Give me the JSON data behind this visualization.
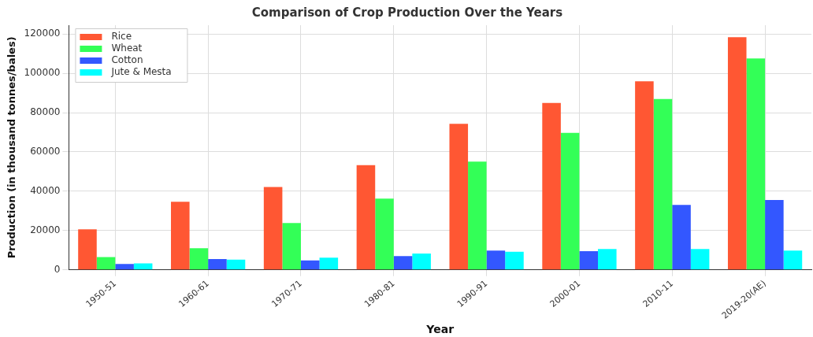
{
  "chart_data": {
    "type": "bar",
    "title": "Comparison of Crop Production Over the Years",
    "xlabel": "Year",
    "ylabel": "Production (in thousand tonnes/bales)",
    "categories": [
      "1950-51",
      "1960-61",
      "1970-71",
      "1980-81",
      "1990-91",
      "2000-01",
      "2010-11",
      "2019-20(AE)"
    ],
    "series": [
      {
        "name": "Rice",
        "color": "#ff5733",
        "values": [
          20600,
          34600,
          42200,
          53300,
          74300,
          84900,
          96000,
          118400
        ]
      },
      {
        "name": "Wheat",
        "color": "#33ff57",
        "values": [
          6500,
          11000,
          23800,
          36300,
          55100,
          69700,
          86900,
          107600
        ]
      },
      {
        "name": "Cotton",
        "color": "#3357ff",
        "values": [
          3000,
          5500,
          4800,
          7000,
          9800,
          9500,
          33000,
          35500
        ]
      },
      {
        "name": "Jute & Mesta",
        "color": "#00ffff",
        "values": [
          3300,
          5200,
          6200,
          8300,
          9200,
          10600,
          10600,
          9800
        ]
      }
    ],
    "ylim": [
      0,
      124500
    ],
    "yticks": [
      0,
      20000,
      40000,
      60000,
      80000,
      100000,
      120000
    ],
    "grid": true,
    "legend": "top left"
  }
}
